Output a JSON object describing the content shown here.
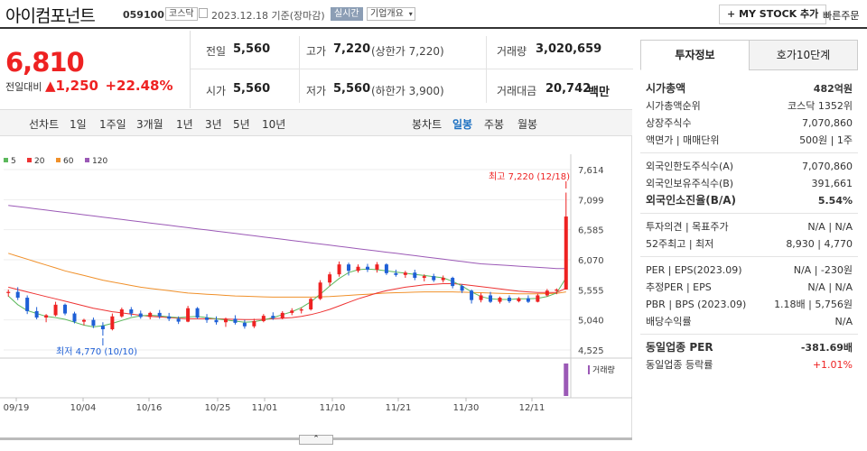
{
  "header": {
    "title": "아이컴포넌트",
    "code": "059100",
    "market_tag": "코스닥",
    "date": "2023.12.18 기준(장마감)",
    "realtime": "실시간",
    "company": "기업개요",
    "mystock": "MY STOCK 추가",
    "quick_order": "빠른주문"
  },
  "price": {
    "current": "6,810",
    "change_label": "전일대비",
    "change_value": "1,250",
    "change_pct": "+22.48%"
  },
  "info": {
    "prev_label": "전일",
    "prev": "5,560",
    "high_label": "고가",
    "high": "7,220",
    "high_limit": "(상한가 7,220)",
    "volume_label": "거래량",
    "volume": "3,020,659",
    "open_label": "시가",
    "open": "5,560",
    "low_label": "저가",
    "low": "5,560",
    "low_limit": "(하한가 3,900)",
    "amount_label": "거래대금",
    "amount": "20,742",
    "amount_unit": "백만"
  },
  "tabs": {
    "line_chart": "선차트",
    "periods": [
      "1일",
      "1주일",
      "3개월",
      "1년",
      "3년",
      "5년",
      "10년"
    ],
    "candle_chart": "봉차트",
    "candle_periods": [
      "일봉",
      "주봉",
      "월봉"
    ]
  },
  "chart": {
    "legend": [
      {
        "label": "5",
        "color": "#5cb85c"
      },
      {
        "label": "20",
        "color": "#e33"
      },
      {
        "label": "60",
        "color": "#f0902a"
      },
      {
        "label": "120",
        "color": "#9b59b6"
      }
    ],
    "high_note": "최고 7,220 (12/18)",
    "low_note": "최저 4,770 (10/10)",
    "y_ticks": [
      "7,614",
      "7,099",
      "6,585",
      "6,070",
      "5,555",
      "5,040",
      "4,525"
    ],
    "x_ticks": [
      "09/19",
      "10/04",
      "10/16",
      "10/25",
      "11/01",
      "11/10",
      "11/21",
      "11/30",
      "12/11"
    ],
    "volume_label": "거래량"
  },
  "chart_data": {
    "type": "candlestick",
    "y_range": [
      4525,
      7614
    ],
    "candles": [
      [
        5500,
        5560,
        5440,
        5520
      ],
      [
        5520,
        5600,
        5380,
        5420
      ],
      [
        5420,
        5460,
        5140,
        5190
      ],
      [
        5190,
        5260,
        5050,
        5080
      ],
      [
        5080,
        5140,
        5000,
        5120
      ],
      [
        5120,
        5350,
        5100,
        5300
      ],
      [
        5300,
        5320,
        5120,
        5150
      ],
      [
        5150,
        5180,
        4980,
        5010
      ],
      [
        5010,
        5060,
        4950,
        5040
      ],
      [
        5040,
        5080,
        4900,
        4940
      ],
      [
        4940,
        5000,
        4770,
        4880
      ],
      [
        4880,
        5150,
        4860,
        5100
      ],
      [
        5100,
        5250,
        5080,
        5220
      ],
      [
        5220,
        5260,
        5100,
        5150
      ],
      [
        5150,
        5200,
        5060,
        5090
      ],
      [
        5090,
        5180,
        5050,
        5160
      ],
      [
        5160,
        5210,
        5060,
        5100
      ],
      [
        5100,
        5160,
        5020,
        5060
      ],
      [
        5060,
        5100,
        4970,
        5010
      ],
      [
        5010,
        5280,
        5000,
        5240
      ],
      [
        5240,
        5260,
        5060,
        5080
      ],
      [
        5080,
        5140,
        4990,
        5040
      ],
      [
        5040,
        5100,
        4960,
        5000
      ],
      [
        5000,
        5080,
        4920,
        5060
      ],
      [
        5060,
        5120,
        4960,
        4990
      ],
      [
        4990,
        5040,
        4890,
        4930
      ],
      [
        4930,
        5060,
        4900,
        5020
      ],
      [
        5020,
        5140,
        5000,
        5110
      ],
      [
        5110,
        5170,
        5040,
        5070
      ],
      [
        5070,
        5190,
        5050,
        5160
      ],
      [
        5160,
        5240,
        5120,
        5200
      ],
      [
        5200,
        5250,
        5150,
        5220
      ],
      [
        5220,
        5420,
        5200,
        5400
      ],
      [
        5400,
        5720,
        5380,
        5680
      ],
      [
        5680,
        5860,
        5620,
        5820
      ],
      [
        5820,
        6040,
        5780,
        5990
      ],
      [
        5990,
        6020,
        5800,
        5880
      ],
      [
        5880,
        5990,
        5850,
        5950
      ],
      [
        5950,
        6000,
        5860,
        5900
      ],
      [
        5900,
        6030,
        5850,
        5990
      ],
      [
        5990,
        6010,
        5810,
        5840
      ],
      [
        5840,
        5900,
        5780,
        5810
      ],
      [
        5810,
        5880,
        5760,
        5850
      ],
      [
        5850,
        5900,
        5720,
        5760
      ],
      [
        5760,
        5820,
        5700,
        5790
      ],
      [
        5790,
        5830,
        5690,
        5720
      ],
      [
        5720,
        5800,
        5680,
        5760
      ],
      [
        5760,
        5780,
        5580,
        5620
      ],
      [
        5620,
        5650,
        5500,
        5540
      ],
      [
        5540,
        5560,
        5320,
        5380
      ],
      [
        5380,
        5500,
        5340,
        5460
      ],
      [
        5460,
        5520,
        5330,
        5350
      ],
      [
        5350,
        5440,
        5320,
        5420
      ],
      [
        5420,
        5460,
        5330,
        5360
      ],
      [
        5360,
        5430,
        5340,
        5410
      ],
      [
        5410,
        5460,
        5330,
        5350
      ],
      [
        5350,
        5490,
        5340,
        5460
      ],
      [
        5460,
        5570,
        5440,
        5540
      ],
      [
        5540,
        5580,
        5480,
        5560
      ],
      [
        5560,
        7220,
        5560,
        6810
      ]
    ],
    "ma5": [
      5450,
      5300,
      5200,
      5150,
      5100,
      5080,
      5050,
      5000,
      4950,
      4920,
      4940,
      4980,
      5030,
      5080,
      5110,
      5120,
      5110,
      5090,
      5080,
      5090,
      5100,
      5080,
      5060,
      5040,
      5020,
      5000,
      5010,
      5040,
      5080,
      5130,
      5180,
      5250,
      5350,
      5480,
      5620,
      5750,
      5850,
      5900,
      5910,
      5900,
      5880,
      5860,
      5840,
      5820,
      5800,
      5780,
      5760,
      5700,
      5620,
      5520,
      5440,
      5400,
      5390,
      5390,
      5400,
      5400,
      5410,
      5440,
      5500,
      5760
    ],
    "ma20": [
      5600,
      5560,
      5520,
      5480,
      5440,
      5400,
      5360,
      5320,
      5280,
      5240,
      5210,
      5180,
      5160,
      5140,
      5120,
      5100,
      5090,
      5080,
      5070,
      5060,
      5060,
      5060,
      5060,
      5055,
      5050,
      5045,
      5045,
      5050,
      5060,
      5070,
      5080,
      5100,
      5130,
      5170,
      5220,
      5280,
      5340,
      5400,
      5450,
      5500,
      5540,
      5570,
      5600,
      5620,
      5640,
      5650,
      5660,
      5660,
      5650,
      5630,
      5610,
      5590,
      5570,
      5550,
      5530,
      5520,
      5510,
      5510,
      5510,
      5580
    ],
    "ma60": [
      6180,
      6130,
      6080,
      6030,
      5980,
      5930,
      5880,
      5840,
      5800,
      5760,
      5720,
      5690,
      5660,
      5630,
      5600,
      5580,
      5560,
      5540,
      5520,
      5500,
      5490,
      5480,
      5470,
      5460,
      5450,
      5445,
      5440,
      5435,
      5430,
      5430,
      5430,
      5430,
      5430,
      5435,
      5440,
      5450,
      5460,
      5470,
      5480,
      5490,
      5500,
      5505,
      5510,
      5515,
      5520,
      5520,
      5520,
      5520,
      5515,
      5510,
      5505,
      5500,
      5495,
      5490,
      5485,
      5485,
      5485,
      5490,
      5495,
      5520
    ],
    "ma120": [
      7000,
      6980,
      6960,
      6940,
      6920,
      6900,
      6880,
      6860,
      6840,
      6820,
      6800,
      6780,
      6760,
      6740,
      6720,
      6700,
      6680,
      6660,
      6640,
      6620,
      6600,
      6580,
      6560,
      6540,
      6520,
      6500,
      6480,
      6460,
      6440,
      6420,
      6400,
      6380,
      6360,
      6340,
      6320,
      6300,
      6280,
      6260,
      6240,
      6220,
      6200,
      6180,
      6160,
      6140,
      6120,
      6100,
      6080,
      6060,
      6040,
      6020,
      6000,
      5990,
      5980,
      5970,
      5960,
      5950,
      5940,
      5930,
      5920,
      5920
    ],
    "volume": [
      0.03,
      0.03,
      0.03,
      0.03,
      0.03,
      0.03,
      0.03,
      0.03,
      0.03,
      0.03,
      0.03,
      0.03,
      0.03,
      0.03,
      0.03,
      0.03,
      0.03,
      0.03,
      0.03,
      0.03,
      0.03,
      0.03,
      0.03,
      0.03,
      0.03,
      0.03,
      0.03,
      0.03,
      0.03,
      0.03,
      0.03,
      0.03,
      0.03,
      0.03,
      0.03,
      0.03,
      0.03,
      0.03,
      0.03,
      0.03,
      0.03,
      0.03,
      0.03,
      0.03,
      0.03,
      0.03,
      0.03,
      0.03,
      0.03,
      0.03,
      0.03,
      0.03,
      0.03,
      0.03,
      0.03,
      0.03,
      0.03,
      0.03,
      0.03,
      1.0
    ]
  },
  "right_panel": {
    "tab_invest": "투자정보",
    "tab_hoga": "호가10단계",
    "rows": [
      {
        "l": "시가총액",
        "r": "482억원",
        "bold": true
      },
      {
        "l": "시가총액순위",
        "r": "코스닥 1352위",
        "bold": false
      },
      {
        "l": "상장주식수",
        "r": "7,070,860",
        "bold": false
      },
      {
        "l": "액면가 | 매매단위",
        "r": "500원 | 1주",
        "bold": false
      },
      {
        "l": "외국인한도주식수(A)",
        "r": "7,070,860",
        "bold": false
      },
      {
        "l": "외국인보유주식수(B)",
        "r": "391,661",
        "bold": false
      },
      {
        "l": "외국인소진율(B/A)",
        "r": "5.54%",
        "bold": true
      },
      {
        "l": "투자의견 | 목표주가",
        "r": "N/A | N/A",
        "bold": false
      },
      {
        "l": "52주최고 | 최저",
        "r": "8,930 | 4,770",
        "bold": false
      },
      {
        "l": "PER | EPS(2023.09)",
        "r": "N/A | -230원",
        "bold": false
      },
      {
        "l": "추정PER | EPS",
        "r": "N/A | N/A",
        "bold": false
      },
      {
        "l": "PBR | BPS (2023.09)",
        "r": "1.18배 | 5,756원",
        "bold": false
      },
      {
        "l": "배당수익률",
        "r": "N/A",
        "bold": false
      },
      {
        "l": "동일업종 PER",
        "r": "-381.69배",
        "bold": true
      },
      {
        "l": "동일업종 등락률",
        "r": "+1.01%",
        "bold": false,
        "red": true
      }
    ]
  }
}
